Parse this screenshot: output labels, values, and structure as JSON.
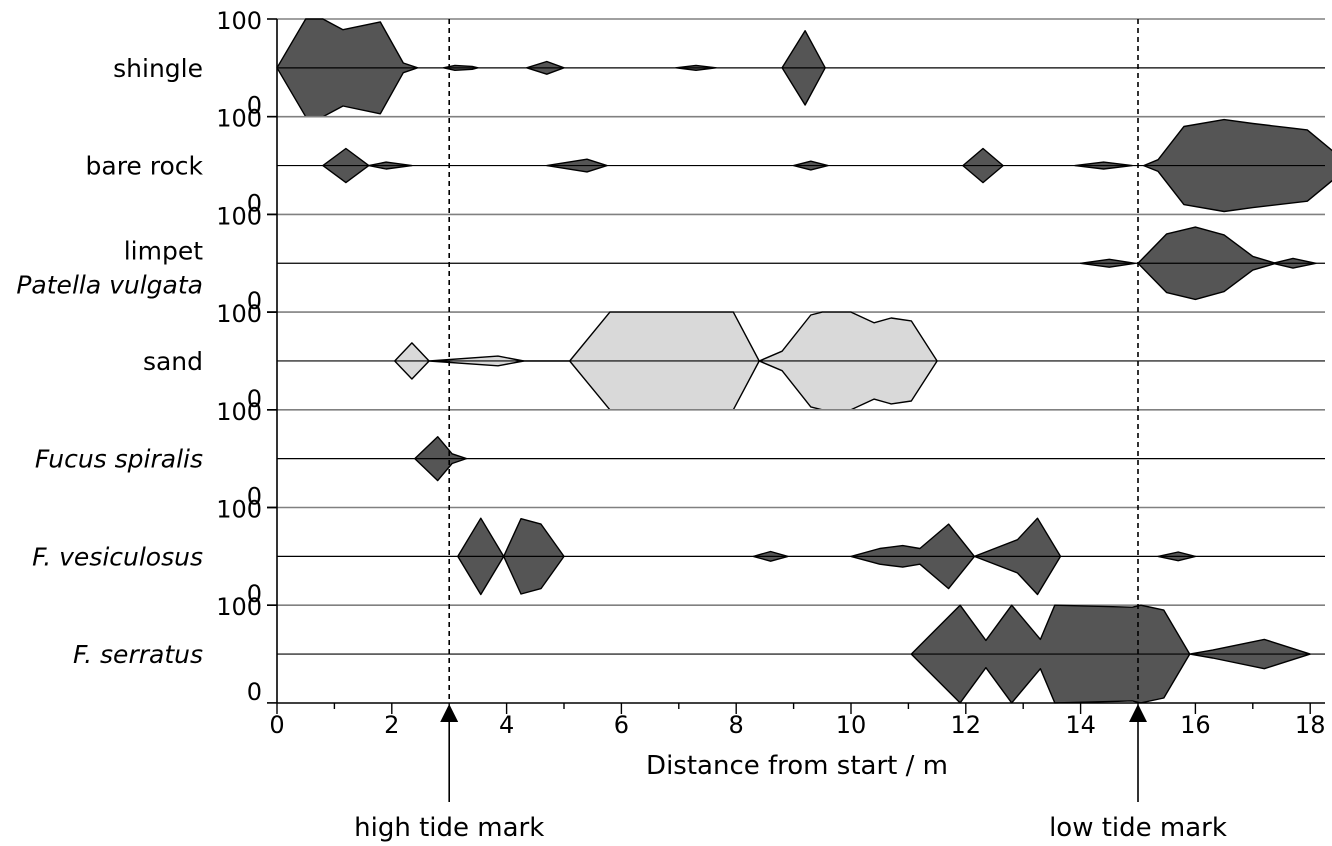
{
  "chart_data": {
    "type": "kite",
    "xlabel": "Distance from start  / m",
    "xlim": [
      0,
      18.7
    ],
    "x_ticks": [
      0,
      2,
      4,
      6,
      8,
      10,
      12,
      14,
      16,
      18
    ],
    "row_scale": {
      "min_label": "0",
      "max_label": "100"
    },
    "markers": [
      {
        "label": "high tide mark",
        "x": 3
      },
      {
        "label": "low tide mark",
        "x": 15
      }
    ],
    "rows": [
      {
        "label": [
          "shingle"
        ],
        "italic": [
          false
        ],
        "fill": "#555555",
        "kites": [
          [
            [
              0,
              0
            ],
            [
              0.5,
              100
            ],
            [
              0.8,
              100
            ],
            [
              1.15,
              78
            ],
            [
              1.8,
              94
            ],
            [
              2.2,
              10
            ],
            [
              2.45,
              0
            ]
          ],
          [
            [
              2.9,
              0
            ],
            [
              3.1,
              5
            ],
            [
              3.4,
              3
            ],
            [
              3.5,
              0
            ]
          ],
          [
            [
              4.35,
              0
            ],
            [
              4.7,
              13
            ],
            [
              5.0,
              0
            ]
          ],
          [
            [
              6.95,
              0
            ],
            [
              7.3,
              5
            ],
            [
              7.65,
              0
            ]
          ],
          [
            [
              8.8,
              0
            ],
            [
              9.2,
              76
            ],
            [
              9.55,
              0
            ]
          ]
        ]
      },
      {
        "label": [
          "bare rock"
        ],
        "italic": [
          false
        ],
        "fill": "#555555",
        "kites": [
          [
            [
              0.8,
              0
            ],
            [
              1.2,
              35
            ],
            [
              1.6,
              0
            ]
          ],
          [
            [
              1.6,
              0
            ],
            [
              1.9,
              7
            ],
            [
              2.35,
              0
            ]
          ],
          [
            [
              4.7,
              0
            ],
            [
              5.4,
              13
            ],
            [
              5.75,
              0
            ]
          ],
          [
            [
              9.0,
              0
            ],
            [
              9.3,
              9
            ],
            [
              9.6,
              0
            ]
          ],
          [
            [
              11.95,
              0
            ],
            [
              12.3,
              35
            ],
            [
              12.65,
              0
            ]
          ],
          [
            [
              13.9,
              0
            ],
            [
              14.4,
              7
            ],
            [
              14.9,
              0
            ]
          ],
          [
            [
              15.1,
              0
            ],
            [
              15.35,
              12
            ],
            [
              15.8,
              80
            ],
            [
              16.5,
              94
            ],
            [
              17.0,
              86
            ],
            [
              17.95,
              73
            ],
            [
              18.7,
              0
            ]
          ]
        ]
      },
      {
        "label": [
          "limpet",
          "Patella vulgata"
        ],
        "italic": [
          false,
          true
        ],
        "fill": "#555555",
        "kites": [
          [
            [
              14.0,
              0
            ],
            [
              14.5,
              8
            ],
            [
              14.95,
              0
            ]
          ],
          [
            [
              15.0,
              0
            ],
            [
              15.5,
              60
            ],
            [
              16.0,
              74
            ],
            [
              16.5,
              58
            ],
            [
              17.0,
              14
            ],
            [
              17.4,
              0
            ]
          ],
          [
            [
              17.35,
              0
            ],
            [
              17.7,
              10
            ],
            [
              18.1,
              0
            ]
          ]
        ]
      },
      {
        "label": [
          "sand"
        ],
        "italic": [
          false
        ],
        "fill": "#d9d9d9",
        "kites": [
          [
            [
              2.05,
              0
            ],
            [
              2.35,
              37
            ],
            [
              2.65,
              0
            ]
          ],
          [
            [
              2.65,
              0
            ],
            [
              3.85,
              10
            ],
            [
              4.3,
              0
            ]
          ],
          [
            [
              4.3,
              0
            ],
            [
              5.1,
              0
            ],
            [
              5.8,
              100
            ],
            [
              7.95,
              100
            ],
            [
              8.4,
              0
            ]
          ],
          [
            [
              8.4,
              0
            ],
            [
              8.8,
              20
            ],
            [
              9.3,
              94
            ],
            [
              9.5,
              100
            ],
            [
              10.0,
              100
            ],
            [
              10.4,
              78
            ],
            [
              10.7,
              88
            ],
            [
              11.05,
              82
            ],
            [
              11.5,
              0
            ]
          ]
        ]
      },
      {
        "label": [
          "Fucus spiralis"
        ],
        "italic": [
          true
        ],
        "fill": "#555555",
        "kites": [
          [
            [
              2.4,
              0
            ],
            [
              2.8,
              45
            ],
            [
              3.05,
              10
            ],
            [
              3.3,
              0
            ]
          ]
        ]
      },
      {
        "label": [
          "F. vesiculosus"
        ],
        "italic": [
          true
        ],
        "fill": "#555555",
        "kites": [
          [
            [
              3.15,
              0
            ],
            [
              3.55,
              78
            ],
            [
              3.95,
              0
            ]
          ],
          [
            [
              3.95,
              0
            ],
            [
              4.25,
              77
            ],
            [
              4.6,
              66
            ],
            [
              5.0,
              0
            ]
          ],
          [
            [
              8.3,
              0
            ],
            [
              8.6,
              10
            ],
            [
              8.9,
              0
            ]
          ],
          [
            [
              10.0,
              0
            ],
            [
              10.5,
              16
            ],
            [
              10.9,
              22
            ],
            [
              11.2,
              16
            ],
            [
              11.7,
              66
            ],
            [
              12.15,
              0
            ]
          ],
          [
            [
              12.15,
              0
            ],
            [
              12.9,
              34
            ],
            [
              13.25,
              78
            ],
            [
              13.65,
              0
            ]
          ],
          [
            [
              15.35,
              0
            ],
            [
              15.7,
              9
            ],
            [
              16.0,
              0
            ]
          ]
        ]
      },
      {
        "label": [
          "F. serratus"
        ],
        "italic": [
          true
        ],
        "fill": "#555555",
        "kites": [
          [
            [
              11.05,
              0
            ],
            [
              11.9,
              100
            ],
            [
              12.35,
              28
            ],
            [
              12.8,
              100
            ],
            [
              13.3,
              30
            ],
            [
              13.55,
              100
            ],
            [
              14.9,
              96
            ],
            [
              15.05,
              100
            ],
            [
              15.45,
              90
            ],
            [
              15.9,
              0
            ]
          ],
          [
            [
              15.9,
              0
            ],
            [
              16.3,
              8
            ],
            [
              17.2,
              30
            ],
            [
              18.0,
              0
            ]
          ]
        ]
      }
    ]
  }
}
